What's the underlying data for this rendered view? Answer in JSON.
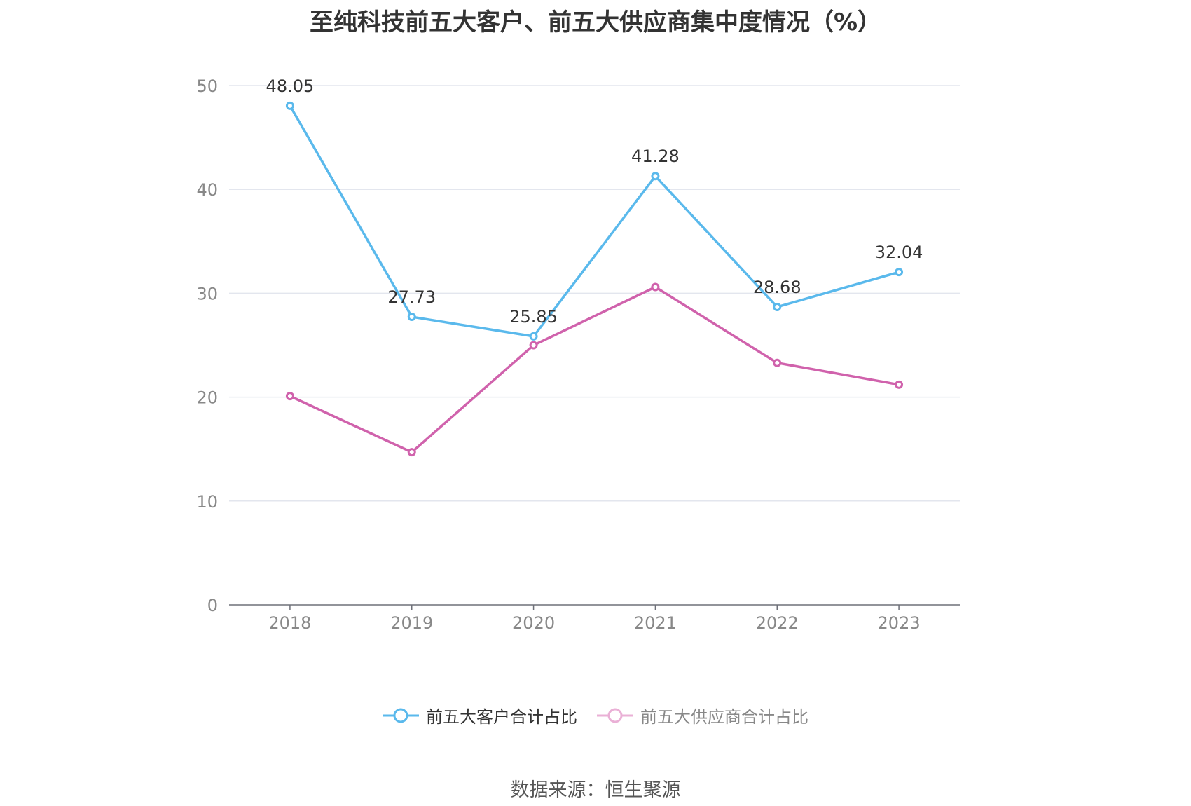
{
  "chart_data": {
    "type": "line",
    "title": "至纯科技前五大客户、前五大供应商集中度情况（%）",
    "x": [
      "2018",
      "2019",
      "2020",
      "2021",
      "2022",
      "2023"
    ],
    "ylim": [
      0,
      50
    ],
    "yticks": [
      0,
      10,
      20,
      30,
      40,
      50
    ],
    "grid": true,
    "legend_position": "bottom",
    "series": [
      {
        "name": "前五大客户合计占比",
        "color": "#5ab9ec",
        "values": [
          48.05,
          27.73,
          25.85,
          41.28,
          28.68,
          32.04
        ],
        "labels": [
          "48.05",
          "27.73",
          "25.85",
          "41.28",
          "28.68",
          "32.04"
        ]
      },
      {
        "name": "前五大供应商合计占比",
        "color": "#d062ac",
        "values": [
          20.1,
          14.7,
          25.0,
          30.6,
          23.3,
          21.2
        ],
        "labels": []
      }
    ]
  },
  "legend_colors": {
    "customers": "#5ab9ec",
    "suppliers_muted": "#eab0d6"
  },
  "source_text": "数据来源：恒生聚源"
}
